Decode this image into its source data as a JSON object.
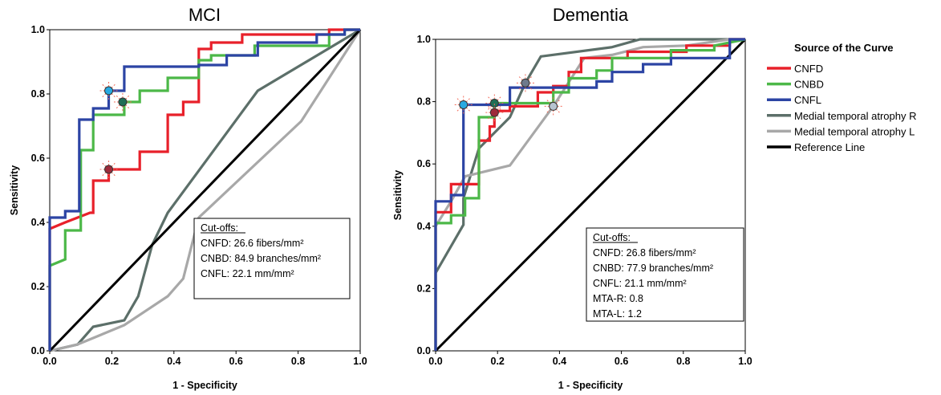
{
  "chart_data": [
    {
      "type": "line",
      "title": "MCI",
      "xlabel": "1 - Specificity",
      "ylabel": "Sensitivity",
      "xlim": [
        0,
        1
      ],
      "ylim": [
        0,
        1
      ],
      "x_ticks": [
        "0.0",
        "0.2",
        "0.4",
        "0.6",
        "0.8",
        "1.0"
      ],
      "y_ticks": [
        "0.0",
        "0.2",
        "0.4",
        "0.6",
        "0.8",
        "1.0"
      ],
      "grid": false,
      "series": [
        {
          "name": "CNFD",
          "color": "#e8202a",
          "points": [
            [
              0,
              0
            ],
            [
              0,
              0.38
            ],
            [
              0.05,
              0.4
            ],
            [
              0.13,
              0.43
            ],
            [
              0.14,
              0.43
            ],
            [
              0.14,
              0.53
            ],
            [
              0.19,
              0.53
            ],
            [
              0.19,
              0.565
            ],
            [
              0.29,
              0.565
            ],
            [
              0.29,
              0.62
            ],
            [
              0.38,
              0.62
            ],
            [
              0.38,
              0.735
            ],
            [
              0.43,
              0.735
            ],
            [
              0.43,
              0.775
            ],
            [
              0.48,
              0.775
            ],
            [
              0.48,
              0.94
            ],
            [
              0.52,
              0.94
            ],
            [
              0.52,
              0.96
            ],
            [
              0.62,
              0.96
            ],
            [
              0.62,
              0.985
            ],
            [
              0.9,
              0.985
            ],
            [
              0.9,
              1.0
            ],
            [
              1,
              1
            ]
          ]
        },
        {
          "name": "CNBD",
          "color": "#4cb848",
          "points": [
            [
              0,
              0
            ],
            [
              0,
              0.265
            ],
            [
              0.05,
              0.285
            ],
            [
              0.05,
              0.375
            ],
            [
              0.1,
              0.375
            ],
            [
              0.1,
              0.625
            ],
            [
              0.14,
              0.625
            ],
            [
              0.14,
              0.735
            ],
            [
              0.24,
              0.735
            ],
            [
              0.24,
              0.775
            ],
            [
              0.29,
              0.775
            ],
            [
              0.29,
              0.81
            ],
            [
              0.38,
              0.81
            ],
            [
              0.38,
              0.85
            ],
            [
              0.48,
              0.85
            ],
            [
              0.48,
              0.905
            ],
            [
              0.52,
              0.905
            ],
            [
              0.52,
              0.92
            ],
            [
              0.66,
              0.92
            ],
            [
              0.66,
              0.95
            ],
            [
              0.9,
              0.95
            ],
            [
              0.9,
              0.985
            ],
            [
              0.95,
              0.985
            ],
            [
              0.95,
              1.0
            ],
            [
              1,
              1
            ]
          ]
        },
        {
          "name": "CNFL",
          "color": "#2c44a4",
          "points": [
            [
              0,
              0
            ],
            [
              0,
              0.415
            ],
            [
              0.05,
              0.415
            ],
            [
              0.05,
              0.435
            ],
            [
              0.095,
              0.435
            ],
            [
              0.095,
              0.72
            ],
            [
              0.14,
              0.72
            ],
            [
              0.14,
              0.755
            ],
            [
              0.19,
              0.755
            ],
            [
              0.19,
              0.81
            ],
            [
              0.24,
              0.81
            ],
            [
              0.24,
              0.885
            ],
            [
              0.48,
              0.885
            ],
            [
              0.48,
              0.89
            ],
            [
              0.57,
              0.89
            ],
            [
              0.57,
              0.92
            ],
            [
              0.67,
              0.92
            ],
            [
              0.67,
              0.96
            ],
            [
              0.86,
              0.96
            ],
            [
              0.86,
              0.985
            ],
            [
              0.95,
              0.985
            ],
            [
              0.95,
              1.0
            ],
            [
              1,
              1
            ]
          ]
        },
        {
          "name": "Medial temporal atrophy R",
          "color": "#5c6f69",
          "points": [
            [
              0,
              0
            ],
            [
              0.09,
              0.02
            ],
            [
              0.14,
              0.075
            ],
            [
              0.24,
              0.095
            ],
            [
              0.285,
              0.17
            ],
            [
              0.33,
              0.33
            ],
            [
              0.38,
              0.43
            ],
            [
              0.67,
              0.81
            ],
            [
              1,
              1
            ]
          ]
        },
        {
          "name": "Medial temporal atrophy L",
          "color": "#a8a8a8",
          "points": [
            [
              0,
              0
            ],
            [
              0.09,
              0.02
            ],
            [
              0.14,
              0.04
            ],
            [
              0.24,
              0.08
            ],
            [
              0.38,
              0.17
            ],
            [
              0.43,
              0.225
            ],
            [
              0.48,
              0.415
            ],
            [
              0.81,
              0.715
            ],
            [
              1,
              1
            ]
          ]
        },
        {
          "name": "Reference Line",
          "color": "#000000",
          "points": [
            [
              0,
              0
            ],
            [
              1,
              1
            ]
          ]
        }
      ],
      "cutoff_markers": [
        {
          "series": "CNFL",
          "x": 0.19,
          "y": 0.81,
          "color": "#29a9e1"
        },
        {
          "series": "CNBD",
          "x": 0.235,
          "y": 0.775,
          "color": "#1f6e56"
        },
        {
          "series": "CNFD",
          "x": 0.19,
          "y": 0.565,
          "color": "#9e2a3a"
        }
      ],
      "annotation": {
        "heading": "Cut-offs:",
        "lines": [
          "CNFD: 26.6 fibers/mm²",
          "CNBD: 84.9 branches/mm²",
          "CNFL: 22.1 mm/mm²"
        ]
      }
    },
    {
      "type": "line",
      "title": "Dementia",
      "xlabel": "1 - Specificity",
      "ylabel": "Sensitivity",
      "xlim": [
        0,
        1
      ],
      "ylim": [
        0,
        1
      ],
      "x_ticks": [
        "0.0",
        "0.2",
        "0.4",
        "0.6",
        "0.8",
        "1.0"
      ],
      "y_ticks": [
        "0.0",
        "0.2",
        "0.4",
        "0.6",
        "0.8",
        "1.0"
      ],
      "grid": false,
      "series": [
        {
          "name": "CNFD",
          "color": "#e8202a",
          "points": [
            [
              0,
              0
            ],
            [
              0,
              0.445
            ],
            [
              0.05,
              0.445
            ],
            [
              0.05,
              0.535
            ],
            [
              0.14,
              0.535
            ],
            [
              0.14,
              0.675
            ],
            [
              0.175,
              0.675
            ],
            [
              0.175,
              0.72
            ],
            [
              0.19,
              0.72
            ],
            [
              0.19,
              0.77
            ],
            [
              0.24,
              0.77
            ],
            [
              0.24,
              0.785
            ],
            [
              0.33,
              0.785
            ],
            [
              0.33,
              0.83
            ],
            [
              0.38,
              0.83
            ],
            [
              0.38,
              0.85
            ],
            [
              0.43,
              0.85
            ],
            [
              0.43,
              0.895
            ],
            [
              0.47,
              0.895
            ],
            [
              0.47,
              0.94
            ],
            [
              0.62,
              0.94
            ],
            [
              0.62,
              0.96
            ],
            [
              0.81,
              0.96
            ],
            [
              0.81,
              0.98
            ],
            [
              0.95,
              0.98
            ],
            [
              0.95,
              1.0
            ],
            [
              1,
              1
            ]
          ]
        },
        {
          "name": "CNBD",
          "color": "#4cb848",
          "points": [
            [
              0,
              0
            ],
            [
              0,
              0.41
            ],
            [
              0.05,
              0.41
            ],
            [
              0.05,
              0.435
            ],
            [
              0.095,
              0.435
            ],
            [
              0.095,
              0.49
            ],
            [
              0.14,
              0.49
            ],
            [
              0.14,
              0.75
            ],
            [
              0.19,
              0.75
            ],
            [
              0.19,
              0.795
            ],
            [
              0.38,
              0.795
            ],
            [
              0.38,
              0.83
            ],
            [
              0.43,
              0.83
            ],
            [
              0.43,
              0.875
            ],
            [
              0.52,
              0.875
            ],
            [
              0.52,
              0.9
            ],
            [
              0.57,
              0.9
            ],
            [
              0.57,
              0.94
            ],
            [
              0.76,
              0.94
            ],
            [
              0.76,
              0.965
            ],
            [
              0.9,
              0.965
            ],
            [
              0.9,
              0.98
            ],
            [
              1,
              1
            ]
          ]
        },
        {
          "name": "CNFL",
          "color": "#2c44a4",
          "points": [
            [
              0,
              0
            ],
            [
              0,
              0.48
            ],
            [
              0.05,
              0.48
            ],
            [
              0.05,
              0.5
            ],
            [
              0.09,
              0.5
            ],
            [
              0.09,
              0.79
            ],
            [
              0.24,
              0.79
            ],
            [
              0.24,
              0.845
            ],
            [
              0.52,
              0.845
            ],
            [
              0.52,
              0.865
            ],
            [
              0.57,
              0.865
            ],
            [
              0.57,
              0.895
            ],
            [
              0.67,
              0.895
            ],
            [
              0.67,
              0.92
            ],
            [
              0.76,
              0.92
            ],
            [
              0.76,
              0.94
            ],
            [
              0.95,
              0.94
            ],
            [
              0.95,
              1.0
            ],
            [
              1,
              1
            ]
          ]
        },
        {
          "name": "Medial temporal atrophy R",
          "color": "#5c6f69",
          "points": [
            [
              0,
              0
            ],
            [
              0,
              0.25
            ],
            [
              0.09,
              0.405
            ],
            [
              0.09,
              0.49
            ],
            [
              0.14,
              0.65
            ],
            [
              0.24,
              0.75
            ],
            [
              0.29,
              0.86
            ],
            [
              0.34,
              0.945
            ],
            [
              0.57,
              0.975
            ],
            [
              0.66,
              1.0
            ],
            [
              1,
              1
            ]
          ]
        },
        {
          "name": "Medial temporal atrophy L",
          "color": "#a8a8a8",
          "points": [
            [
              0,
              0
            ],
            [
              0,
              0.4
            ],
            [
              0.05,
              0.48
            ],
            [
              0.095,
              0.56
            ],
            [
              0.24,
              0.595
            ],
            [
              0.38,
              0.785
            ],
            [
              0.48,
              0.94
            ],
            [
              0.57,
              0.95
            ],
            [
              0.67,
              0.975
            ],
            [
              0.81,
              0.98
            ],
            [
              0.95,
              1.0
            ],
            [
              1,
              1
            ]
          ]
        },
        {
          "name": "Reference Line",
          "color": "#000000",
          "points": [
            [
              0,
              0
            ],
            [
              1,
              1
            ]
          ]
        }
      ],
      "cutoff_markers": [
        {
          "series": "CNFL",
          "x": 0.09,
          "y": 0.79,
          "color": "#29a9e1"
        },
        {
          "series": "CNBD",
          "x": 0.19,
          "y": 0.795,
          "color": "#1f6e56"
        },
        {
          "series": "CNFD",
          "x": 0.19,
          "y": 0.765,
          "color": "#9e2a3a"
        },
        {
          "series": "Medial temporal atrophy R",
          "x": 0.29,
          "y": 0.86,
          "color": "#6e7a8c"
        },
        {
          "series": "Medial temporal atrophy L",
          "x": 0.38,
          "y": 0.785,
          "color": "#b8c4d0"
        }
      ],
      "annotation": {
        "heading": "Cut-offs:",
        "lines": [
          "CNFD: 26.8 fibers/mm²",
          "CNBD: 77.9 branches/mm²",
          "CNFL: 21.1 mm/mm²",
          "MTA-R: 0.8",
          "MTA-L: 1.2"
        ]
      }
    }
  ],
  "legend": {
    "title": "Source of the Curve",
    "items": [
      {
        "label": "CNFD",
        "color": "#e8202a"
      },
      {
        "label": "CNBD",
        "color": "#4cb848"
      },
      {
        "label": "CNFL",
        "color": "#2c44a4"
      },
      {
        "label": "Medial temporal atrophy R",
        "color": "#5c6f69"
      },
      {
        "label": "Medial temporal atrophy L",
        "color": "#a8a8a8"
      },
      {
        "label": "Reference Line",
        "color": "#000000"
      }
    ]
  }
}
